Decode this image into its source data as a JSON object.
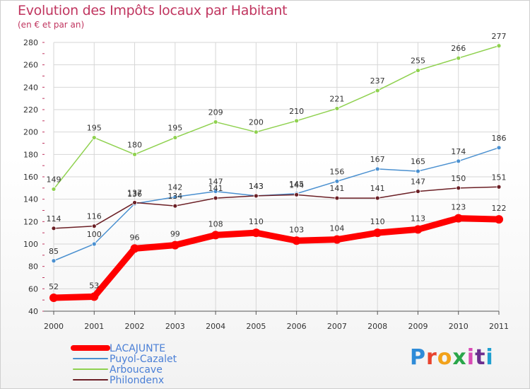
{
  "title": "Evolution des Impôts locaux par Habitant",
  "subtitle": "(en € et par an)",
  "logo": {
    "text": "Proxiti",
    "colors": [
      "#2e8bd8",
      "#e8432e",
      "#f2a21b",
      "#2aa64a",
      "#d94bb5",
      "#6c2e8f",
      "#1fa0d0"
    ]
  },
  "chart_data": {
    "type": "line",
    "x": [
      "2000",
      "2001",
      "2002",
      "2003",
      "2004",
      "2005",
      "2006",
      "2007",
      "2008",
      "2009",
      "2010",
      "2011"
    ],
    "ylim": [
      40,
      280
    ],
    "yticks": [
      40,
      60,
      80,
      100,
      120,
      140,
      160,
      180,
      200,
      220,
      240,
      260,
      280
    ],
    "grid": true,
    "legend": "bottom-left",
    "series": [
      {
        "name": "Puyol-Cazalet",
        "color": "#4a90d0",
        "values": [
          85,
          100,
          136,
          142,
          147,
          143,
          145,
          156,
          167,
          165,
          174,
          186
        ]
      },
      {
        "name": "Arboucave",
        "color": "#8fd14f",
        "values": [
          149,
          195,
          180,
          195,
          209,
          200,
          210,
          221,
          237,
          255,
          266,
          277
        ]
      },
      {
        "name": "Philondenx",
        "color": "#6b1f25",
        "values": [
          114,
          116,
          137,
          134,
          141,
          143,
          144,
          141,
          141,
          147,
          150,
          151
        ]
      },
      {
        "name": "LACAJUNTE",
        "color": "#ff0000",
        "values": [
          52,
          53,
          96,
          99,
          108,
          110,
          103,
          104,
          110,
          113,
          123,
          122
        ]
      }
    ]
  }
}
